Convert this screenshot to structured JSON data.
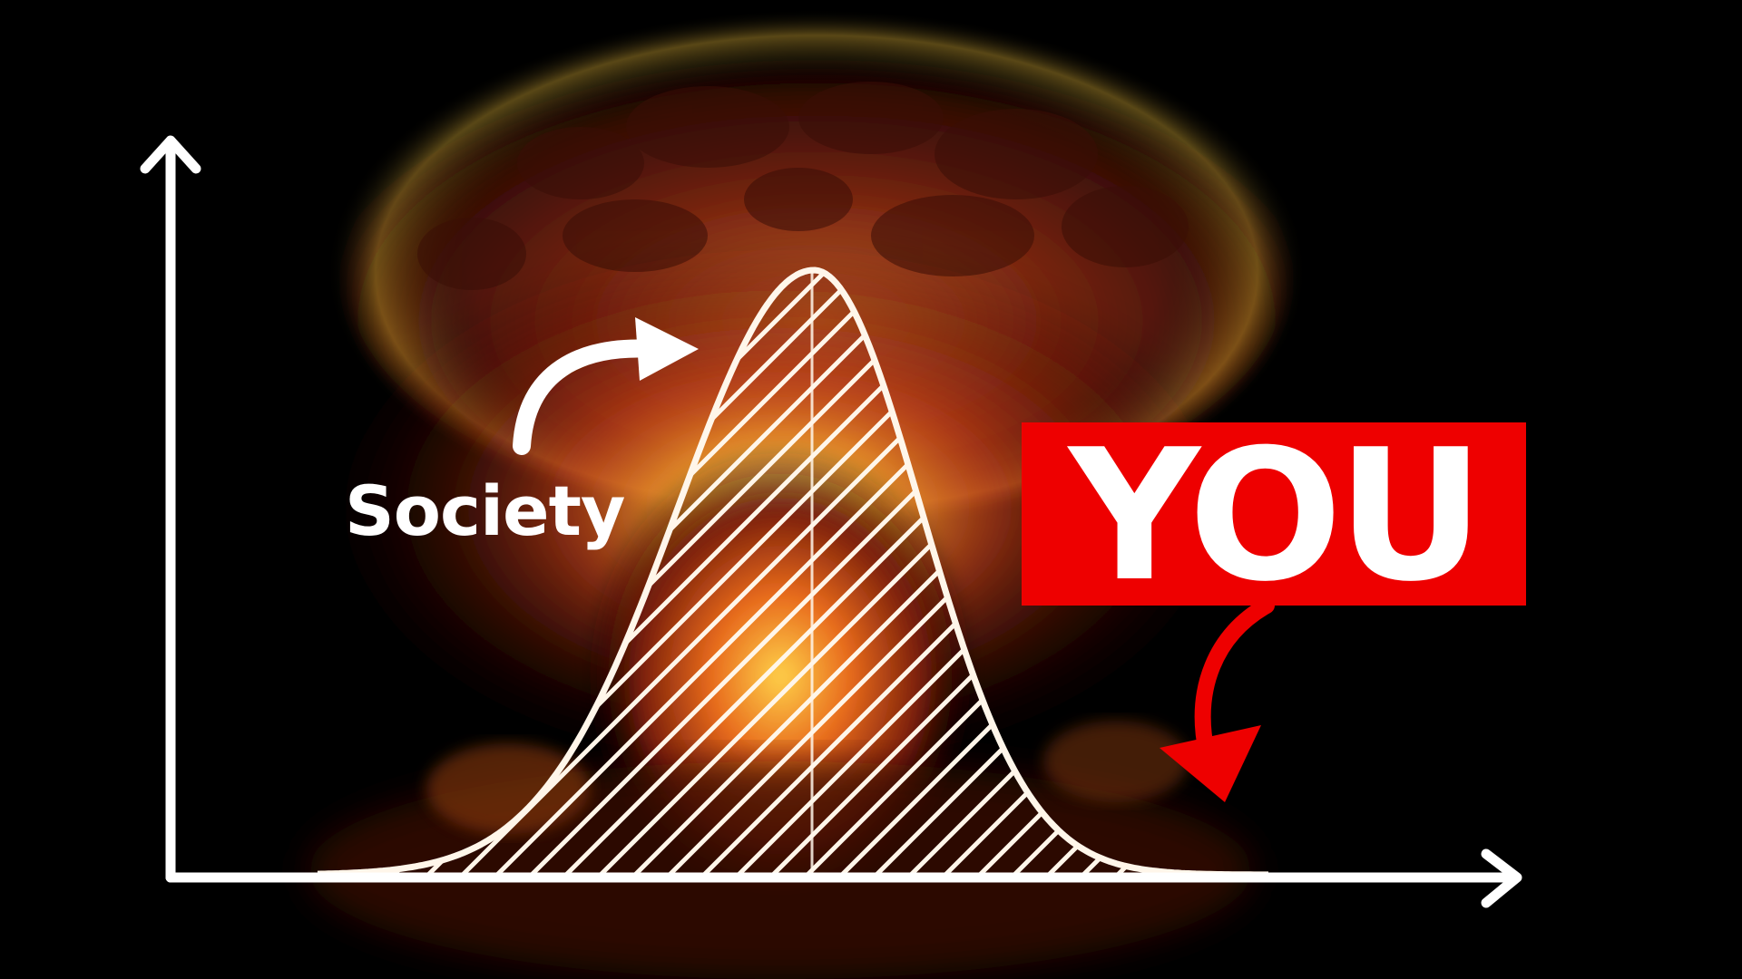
{
  "labels": {
    "society": "Society",
    "you": "YOU"
  },
  "colors": {
    "background": "#000000",
    "curve": "#fff6ea",
    "axis": "#ffffff",
    "you_box": "#ee0000",
    "you_arrow": "#ee0000",
    "society_arrow": "#ffffff",
    "glow_core": "#ffd75a",
    "glow_mid": "#e0501a",
    "cloud": "#5a1a08"
  },
  "icons": {
    "y_axis_arrow": "arrow-up-icon",
    "x_axis_arrow": "arrow-right-icon",
    "society_pointer": "curved-arrow-right-icon",
    "you_pointer": "curved-arrow-down-icon",
    "background": "mushroom-cloud-explosion"
  }
}
